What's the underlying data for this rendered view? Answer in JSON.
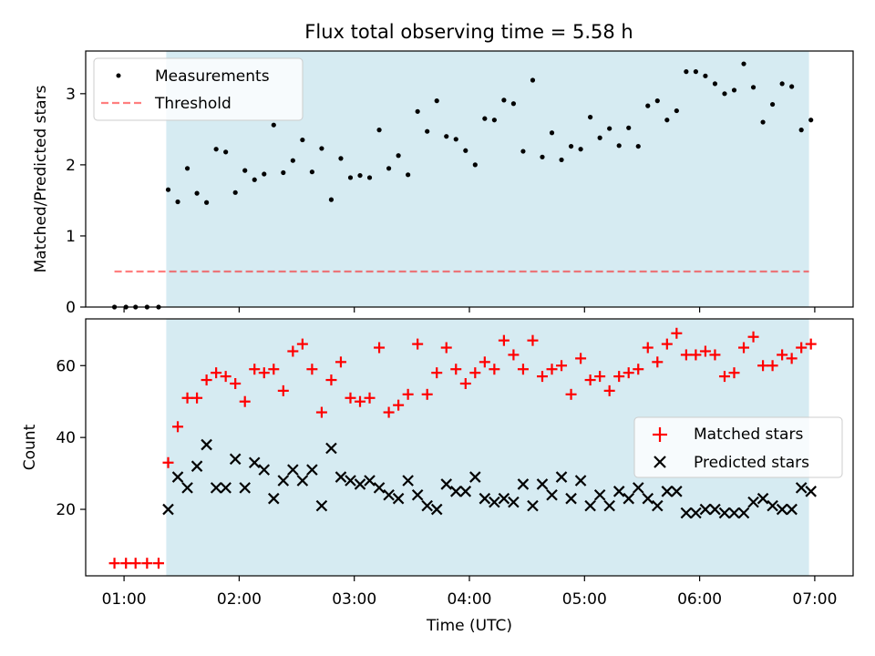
{
  "title": "Flux total observing time = 5.58 h",
  "colors": {
    "shade": "#add8e6",
    "threshold": "#ff0000",
    "matched": "#ff0000",
    "predicted": "#000000",
    "measurement": "#000000"
  },
  "chart_data": [
    {
      "type": "scatter",
      "ylabel": "Matched/Predicted stars",
      "ylim": [
        0,
        3.6
      ],
      "yticks": [
        0,
        1,
        2,
        3
      ],
      "xlim_hours": [
        0.6667,
        7.3333
      ],
      "observing_window_hours": [
        1.3667,
        6.95
      ],
      "legend_position": "upper-left",
      "threshold": {
        "label": "Threshold",
        "value": 0.5,
        "x_range_hours": [
          0.9167,
          6.95
        ]
      },
      "series": [
        {
          "name": "Measurements",
          "x": [
            0.9167,
            1.0167,
            1.1,
            1.2,
            1.3,
            1.3833,
            1.4667,
            1.55,
            1.6333,
            1.7167,
            1.8,
            1.8833,
            1.9667,
            2.05,
            2.1333,
            2.2167,
            2.3,
            2.3833,
            2.4667,
            2.55,
            2.6333,
            2.7167,
            2.8,
            2.8833,
            2.9667,
            3.05,
            3.1333,
            3.2167,
            3.3,
            3.3833,
            3.4667,
            3.55,
            3.6333,
            3.7167,
            3.8,
            3.8833,
            3.9667,
            4.05,
            4.1333,
            4.2167,
            4.3,
            4.3833,
            4.4667,
            4.55,
            4.6333,
            4.7167,
            4.8,
            4.8833,
            4.9667,
            5.05,
            5.1333,
            5.2167,
            5.3,
            5.3833,
            5.4667,
            5.55,
            5.6333,
            5.7167,
            5.8,
            5.8833,
            5.9667,
            6.05,
            6.1333,
            6.2167,
            6.3,
            6.3833,
            6.4667,
            6.55,
            6.6333,
            6.7167,
            6.8,
            6.8833,
            6.9667
          ],
          "y": [
            0,
            0,
            0,
            0,
            0,
            1.65,
            1.48,
            1.95,
            1.6,
            1.47,
            2.22,
            2.18,
            1.61,
            1.92,
            1.79,
            1.87,
            2.56,
            1.89,
            2.06,
            2.35,
            1.9,
            2.23,
            1.51,
            2.09,
            1.82,
            1.85,
            1.82,
            2.49,
            1.95,
            2.13,
            1.86,
            2.75,
            2.47,
            2.9,
            2.4,
            2.36,
            2.2,
            2.0,
            2.65,
            2.63,
            2.91,
            2.86,
            2.19,
            3.19,
            2.11,
            2.45,
            2.07,
            2.26,
            2.22,
            2.67,
            2.38,
            2.51,
            2.27,
            2.52,
            2.26,
            2.83,
            2.9,
            2.63,
            2.76,
            3.31,
            3.31,
            3.25,
            3.14,
            3.0,
            3.05,
            3.42,
            3.09,
            2.6,
            2.85,
            3.14,
            3.1,
            2.49,
            2.63
          ]
        }
      ]
    },
    {
      "type": "scatter",
      "xlabel": "Time (UTC)",
      "ylabel": "Count",
      "ylim": [
        1.5,
        73
      ],
      "yticks": [
        20,
        40,
        60
      ],
      "xticks": [
        "01:00",
        "02:00",
        "03:00",
        "04:00",
        "05:00",
        "06:00",
        "07:00"
      ],
      "xticks_hours": [
        1,
        2,
        3,
        4,
        5,
        6,
        7
      ],
      "xlim_hours": [
        0.6667,
        7.3333
      ],
      "observing_window_hours": [
        1.3667,
        6.95
      ],
      "legend_position": "center-right",
      "series": [
        {
          "name": "Matched stars",
          "marker": "+",
          "x": [
            0.9167,
            1.0167,
            1.1,
            1.2,
            1.3,
            1.3833,
            1.4667,
            1.55,
            1.6333,
            1.7167,
            1.8,
            1.8833,
            1.9667,
            2.05,
            2.1333,
            2.2167,
            2.3,
            2.3833,
            2.4667,
            2.55,
            2.6333,
            2.7167,
            2.8,
            2.8833,
            2.9667,
            3.05,
            3.1333,
            3.2167,
            3.3,
            3.3833,
            3.4667,
            3.55,
            3.6333,
            3.7167,
            3.8,
            3.8833,
            3.9667,
            4.05,
            4.1333,
            4.2167,
            4.3,
            4.3833,
            4.4667,
            4.55,
            4.6333,
            4.7167,
            4.8,
            4.8833,
            4.9667,
            5.05,
            5.1333,
            5.2167,
            5.3,
            5.3833,
            5.4667,
            5.55,
            5.6333,
            5.7167,
            5.8,
            5.8833,
            5.9667,
            6.05,
            6.1333,
            6.2167,
            6.3,
            6.3833,
            6.4667,
            6.55,
            6.6333,
            6.7167,
            6.8,
            6.8833,
            6.9667
          ],
          "y": [
            5,
            5,
            5,
            5,
            5,
            33,
            43,
            51,
            51,
            56,
            58,
            57,
            55,
            50,
            59,
            58,
            59,
            53,
            64,
            66,
            59,
            47,
            56,
            61,
            51,
            50,
            51,
            65,
            47,
            49,
            52,
            66,
            52,
            58,
            65,
            59,
            55,
            58,
            61,
            59,
            67,
            63,
            59,
            67,
            57,
            59,
            60,
            52,
            62,
            56,
            57,
            53,
            57,
            58,
            59,
            65,
            61,
            66,
            69,
            63,
            63,
            64,
            63,
            57,
            58,
            65,
            68,
            60,
            60,
            63,
            62,
            65,
            66
          ]
        },
        {
          "name": "Predicted stars",
          "marker": "x",
          "x": [
            1.3833,
            1.4667,
            1.55,
            1.6333,
            1.7167,
            1.8,
            1.8833,
            1.9667,
            2.05,
            2.1333,
            2.2167,
            2.3,
            2.3833,
            2.4667,
            2.55,
            2.6333,
            2.7167,
            2.8,
            2.8833,
            2.9667,
            3.05,
            3.1333,
            3.2167,
            3.3,
            3.3833,
            3.4667,
            3.55,
            3.6333,
            3.7167,
            3.8,
            3.8833,
            3.9667,
            4.05,
            4.1333,
            4.2167,
            4.3,
            4.3833,
            4.4667,
            4.55,
            4.6333,
            4.7167,
            4.8,
            4.8833,
            4.9667,
            5.05,
            5.1333,
            5.2167,
            5.3,
            5.3833,
            5.4667,
            5.55,
            5.6333,
            5.7167,
            5.8,
            5.8833,
            5.9667,
            6.05,
            6.1333,
            6.2167,
            6.3,
            6.3833,
            6.4667,
            6.55,
            6.6333,
            6.7167,
            6.8,
            6.8833,
            6.9667
          ],
          "y": [
            20,
            29,
            26,
            32,
            38,
            26,
            26,
            34,
            26,
            33,
            31,
            23,
            28,
            31,
            28,
            31,
            21,
            37,
            29,
            28,
            27,
            28,
            26,
            24,
            23,
            28,
            24,
            21,
            20,
            27,
            25,
            25,
            29,
            23,
            22,
            23,
            22,
            27,
            21,
            27,
            24,
            29,
            23,
            28,
            21,
            24,
            21,
            25,
            23,
            26,
            23,
            21,
            25,
            25,
            19,
            19,
            20,
            20,
            19,
            19,
            19,
            22,
            23,
            21,
            20,
            20,
            26,
            25
          ]
        }
      ]
    }
  ]
}
